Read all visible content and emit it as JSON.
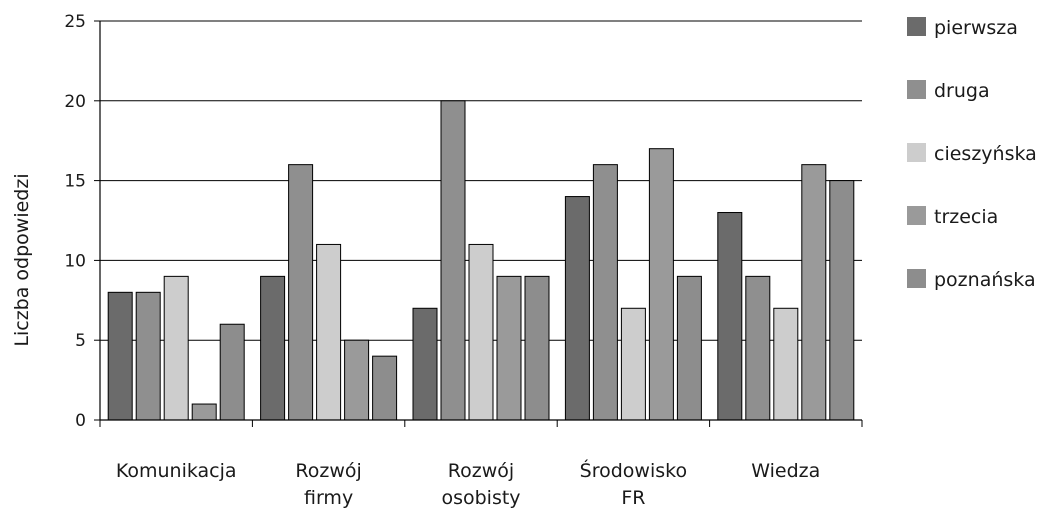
{
  "chart_data": {
    "type": "bar",
    "title": "",
    "xlabel": "",
    "ylabel": "Liczba odpowiedzi",
    "ylim": [
      0,
      25
    ],
    "yticks": [
      0,
      5,
      10,
      15,
      20,
      25
    ],
    "grid": true,
    "legend_position": "right",
    "categories": [
      [
        "Komunikacja"
      ],
      [
        "Rozwój",
        "firmy"
      ],
      [
        "Rozwój",
        "osobisty"
      ],
      [
        "Środowisko",
        "FR"
      ],
      [
        "Wiedza"
      ]
    ],
    "series": [
      {
        "name": "pierwsza",
        "color": "#6b6b6b",
        "values": [
          8,
          9,
          7,
          14,
          13
        ]
      },
      {
        "name": "druga",
        "color": "#8f8f8f",
        "values": [
          8,
          16,
          20,
          16,
          9
        ]
      },
      {
        "name": "cieszyńska",
        "color": "#cdcdcd",
        "values": [
          9,
          11,
          11,
          7,
          7
        ]
      },
      {
        "name": "trzecia",
        "color": "#9a9a9a",
        "values": [
          1,
          5,
          9,
          17,
          16
        ]
      },
      {
        "name": "poznańska",
        "color": "#8d8d8d",
        "values": [
          6,
          4,
          9,
          9,
          15
        ]
      }
    ]
  }
}
